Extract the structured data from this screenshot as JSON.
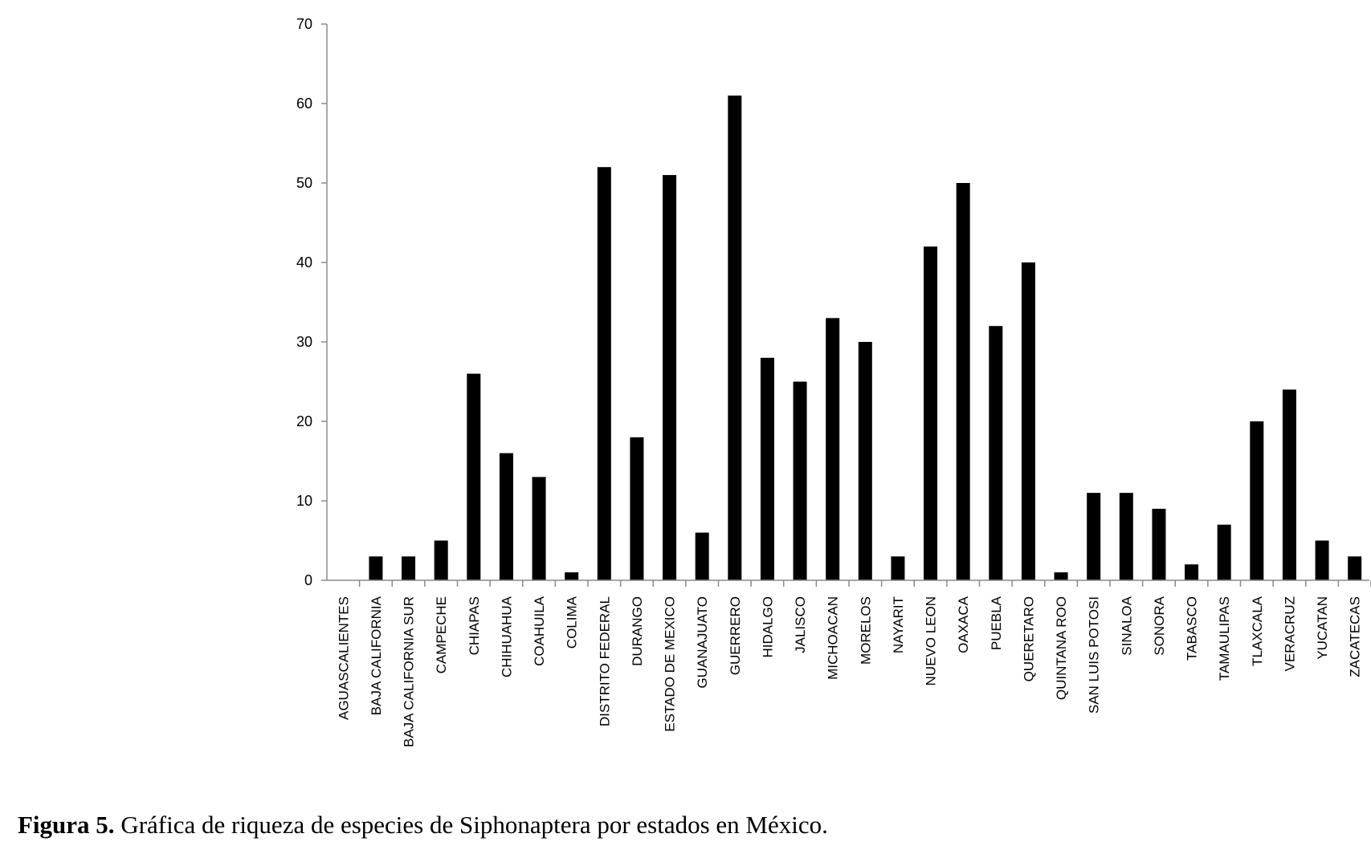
{
  "figure": {
    "caption_label": "Figura 5.",
    "caption_text": " Gráfica de riqueza de especies de Siphonaptera por estados en México."
  },
  "chart_data": {
    "type": "bar",
    "title": "",
    "xlabel": "",
    "ylabel": "",
    "ylim": [
      0,
      70
    ],
    "yticks": [
      0,
      10,
      20,
      30,
      40,
      50,
      60,
      70
    ],
    "grid": false,
    "bar_color": "#000000",
    "categories": [
      "AGUASCALIENTES",
      "BAJA CALIFORNIA",
      "BAJA CALIFORNIA SUR",
      "CAMPECHE",
      "CHIAPAS",
      "CHIHUAHUA",
      "COAHUILA",
      "COLIMA",
      "DISTRITO FEDERAL",
      "DURANGO",
      "ESTADO DE MEXICO",
      "GUANAJUATO",
      "GUERRERO",
      "HIDALGO",
      "JALISCO",
      "MICHOACAN",
      "MORELOS",
      "NAYARIT",
      "NUEVO LEON",
      "OAXACA",
      "PUEBLA",
      "QUERETARO",
      "QUINTANA ROO",
      "SAN LUIS POTOSI",
      "SINALOA",
      "SONORA",
      "TABASCO",
      "TAMAULIPAS",
      "TLAXCALA",
      "VERACRUZ",
      "YUCATAN",
      "ZACATECAS"
    ],
    "values": [
      0,
      3,
      3,
      5,
      26,
      16,
      13,
      1,
      52,
      18,
      51,
      6,
      61,
      28,
      25,
      33,
      30,
      3,
      42,
      50,
      32,
      40,
      1,
      11,
      11,
      9,
      2,
      7,
      20,
      24,
      5,
      3
    ]
  }
}
